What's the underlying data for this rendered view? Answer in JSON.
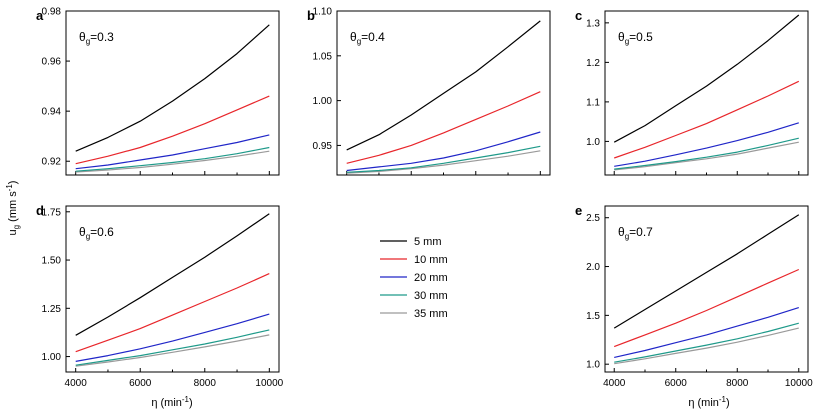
{
  "figure": {
    "ylabel": {
      "main": "u",
      "sub": "g",
      "unit_pre": " (mm s",
      "unit_sup": "-1",
      "unit_post": ")"
    },
    "xlabel": {
      "main": "η (min",
      "sup": "-1",
      "post": ")"
    }
  },
  "legend": {
    "entries": [
      {
        "label": "5 mm",
        "color": "#000000"
      },
      {
        "label": "10 mm",
        "color": "#e8262b"
      },
      {
        "label": "20 mm",
        "color": "#2026c8"
      },
      {
        "label": "30 mm",
        "color": "#1f9a8a"
      },
      {
        "label": "35 mm",
        "color": "#9a9a9a"
      }
    ]
  },
  "chart_data": [
    {
      "type": "line",
      "panel": "a",
      "theta_value": "0.3",
      "xlim": [
        3700,
        10300
      ],
      "ylim": [
        0.9145,
        0.98
      ],
      "xticks": [],
      "yticks": [
        0.92,
        0.94,
        0.96,
        0.98
      ],
      "ytick_labels": [
        "0.92",
        "0.94",
        "0.96",
        "0.98"
      ],
      "x": [
        4000,
        5000,
        6000,
        7000,
        8000,
        9000,
        10000
      ],
      "series": [
        {
          "name": "5 mm",
          "values": [
            0.924,
            0.9295,
            0.936,
            0.944,
            0.953,
            0.963,
            0.9745
          ]
        },
        {
          "name": "10 mm",
          "values": [
            0.919,
            0.922,
            0.9255,
            0.93,
            0.935,
            0.9405,
            0.946
          ]
        },
        {
          "name": "20 mm",
          "values": [
            0.917,
            0.9185,
            0.9205,
            0.9225,
            0.925,
            0.9275,
            0.9305
          ]
        },
        {
          "name": "30 mm",
          "values": [
            0.916,
            0.917,
            0.9182,
            0.9195,
            0.921,
            0.923,
            0.9255
          ]
        },
        {
          "name": "35 mm",
          "values": [
            0.9157,
            0.9165,
            0.9175,
            0.9188,
            0.9203,
            0.922,
            0.924
          ]
        }
      ]
    },
    {
      "type": "line",
      "panel": "b",
      "theta_value": "0.4",
      "xlim": [
        3700,
        10300
      ],
      "ylim": [
        0.917,
        1.1
      ],
      "xticks": [],
      "yticks": [
        0.95,
        1.0,
        1.05,
        1.1
      ],
      "ytick_labels": [
        "0.95",
        "1.00",
        "1.05",
        "1.10"
      ],
      "x": [
        4000,
        5000,
        6000,
        7000,
        8000,
        9000,
        10000
      ],
      "series": [
        {
          "name": "5 mm",
          "values": [
            0.945,
            0.962,
            0.984,
            1.008,
            1.032,
            1.06,
            1.089
          ]
        },
        {
          "name": "10 mm",
          "values": [
            0.93,
            0.939,
            0.95,
            0.964,
            0.979,
            0.994,
            1.01
          ]
        },
        {
          "name": "20 mm",
          "values": [
            0.922,
            0.926,
            0.93,
            0.936,
            0.944,
            0.954,
            0.965
          ]
        },
        {
          "name": "30 mm",
          "values": [
            0.92,
            0.922,
            0.925,
            0.93,
            0.936,
            0.942,
            0.949
          ]
        },
        {
          "name": "35 mm",
          "values": [
            0.919,
            0.921,
            0.924,
            0.928,
            0.933,
            0.938,
            0.944
          ]
        }
      ]
    },
    {
      "type": "line",
      "panel": "c",
      "theta_value": "0.5",
      "xlim": [
        3700,
        10300
      ],
      "ylim": [
        0.915,
        1.33
      ],
      "xticks": [],
      "yticks": [
        1.0,
        1.1,
        1.2,
        1.3
      ],
      "ytick_labels": [
        "1.0",
        "1.1",
        "1.2",
        "1.3"
      ],
      "x": [
        4000,
        5000,
        6000,
        7000,
        8000,
        9000,
        10000
      ],
      "series": [
        {
          "name": "5 mm",
          "values": [
            0.998,
            1.04,
            1.09,
            1.14,
            1.195,
            1.255,
            1.32
          ]
        },
        {
          "name": "10 mm",
          "values": [
            0.958,
            0.985,
            1.015,
            1.045,
            1.08,
            1.115,
            1.152
          ]
        },
        {
          "name": "20 mm",
          "values": [
            0.937,
            0.95,
            0.966,
            0.983,
            1.002,
            1.023,
            1.047
          ]
        },
        {
          "name": "30 mm",
          "values": [
            0.93,
            0.939,
            0.949,
            0.96,
            0.973,
            0.99,
            1.008
          ]
        },
        {
          "name": "35 mm",
          "values": [
            0.928,
            0.936,
            0.946,
            0.956,
            0.968,
            0.983,
            0.998
          ]
        }
      ]
    },
    {
      "type": "line",
      "panel": "d",
      "theta_value": "0.6",
      "xlim": [
        3700,
        10300
      ],
      "ylim": [
        0.92,
        1.78
      ],
      "xticks": [
        4000,
        6000,
        8000,
        10000
      ],
      "xtick_labels": [
        "4000",
        "6000",
        "8000",
        "10000"
      ],
      "yticks": [
        1.0,
        1.25,
        1.5,
        1.75
      ],
      "ytick_labels": [
        "1.00",
        "1.25",
        "1.50",
        "1.75"
      ],
      "x": [
        4000,
        5000,
        6000,
        7000,
        8000,
        9000,
        10000
      ],
      "series": [
        {
          "name": "5 mm",
          "values": [
            1.11,
            1.205,
            1.305,
            1.41,
            1.515,
            1.625,
            1.74
          ]
        },
        {
          "name": "10 mm",
          "values": [
            1.025,
            1.085,
            1.145,
            1.215,
            1.285,
            1.355,
            1.43
          ]
        },
        {
          "name": "20 mm",
          "values": [
            0.975,
            1.005,
            1.04,
            1.08,
            1.125,
            1.17,
            1.22
          ]
        },
        {
          "name": "30 mm",
          "values": [
            0.955,
            0.98,
            1.005,
            1.035,
            1.065,
            1.1,
            1.138
          ]
        },
        {
          "name": "35 mm",
          "values": [
            0.95,
            0.972,
            0.995,
            1.022,
            1.05,
            1.08,
            1.112
          ]
        }
      ]
    },
    {
      "type": "line",
      "panel": "e",
      "theta_value": "0.7",
      "xlim": [
        3700,
        10300
      ],
      "ylim": [
        0.92,
        2.62
      ],
      "xticks": [
        4000,
        6000,
        8000,
        10000
      ],
      "xtick_labels": [
        "4000",
        "6000",
        "8000",
        "10000"
      ],
      "yticks": [
        1.0,
        1.5,
        2.0,
        2.5
      ],
      "ytick_labels": [
        "1.0",
        "1.5",
        "2.0",
        "2.5"
      ],
      "x": [
        4000,
        5000,
        6000,
        7000,
        8000,
        9000,
        10000
      ],
      "series": [
        {
          "name": "5 mm",
          "values": [
            1.37,
            1.56,
            1.75,
            1.94,
            2.13,
            2.33,
            2.53
          ]
        },
        {
          "name": "10 mm",
          "values": [
            1.18,
            1.3,
            1.42,
            1.55,
            1.69,
            1.83,
            1.97
          ]
        },
        {
          "name": "20 mm",
          "values": [
            1.07,
            1.14,
            1.22,
            1.3,
            1.39,
            1.48,
            1.58
          ]
        },
        {
          "name": "30 mm",
          "values": [
            1.02,
            1.075,
            1.135,
            1.195,
            1.26,
            1.335,
            1.42
          ]
        },
        {
          "name": "35 mm",
          "values": [
            1.005,
            1.055,
            1.11,
            1.165,
            1.225,
            1.295,
            1.37
          ]
        }
      ]
    }
  ]
}
